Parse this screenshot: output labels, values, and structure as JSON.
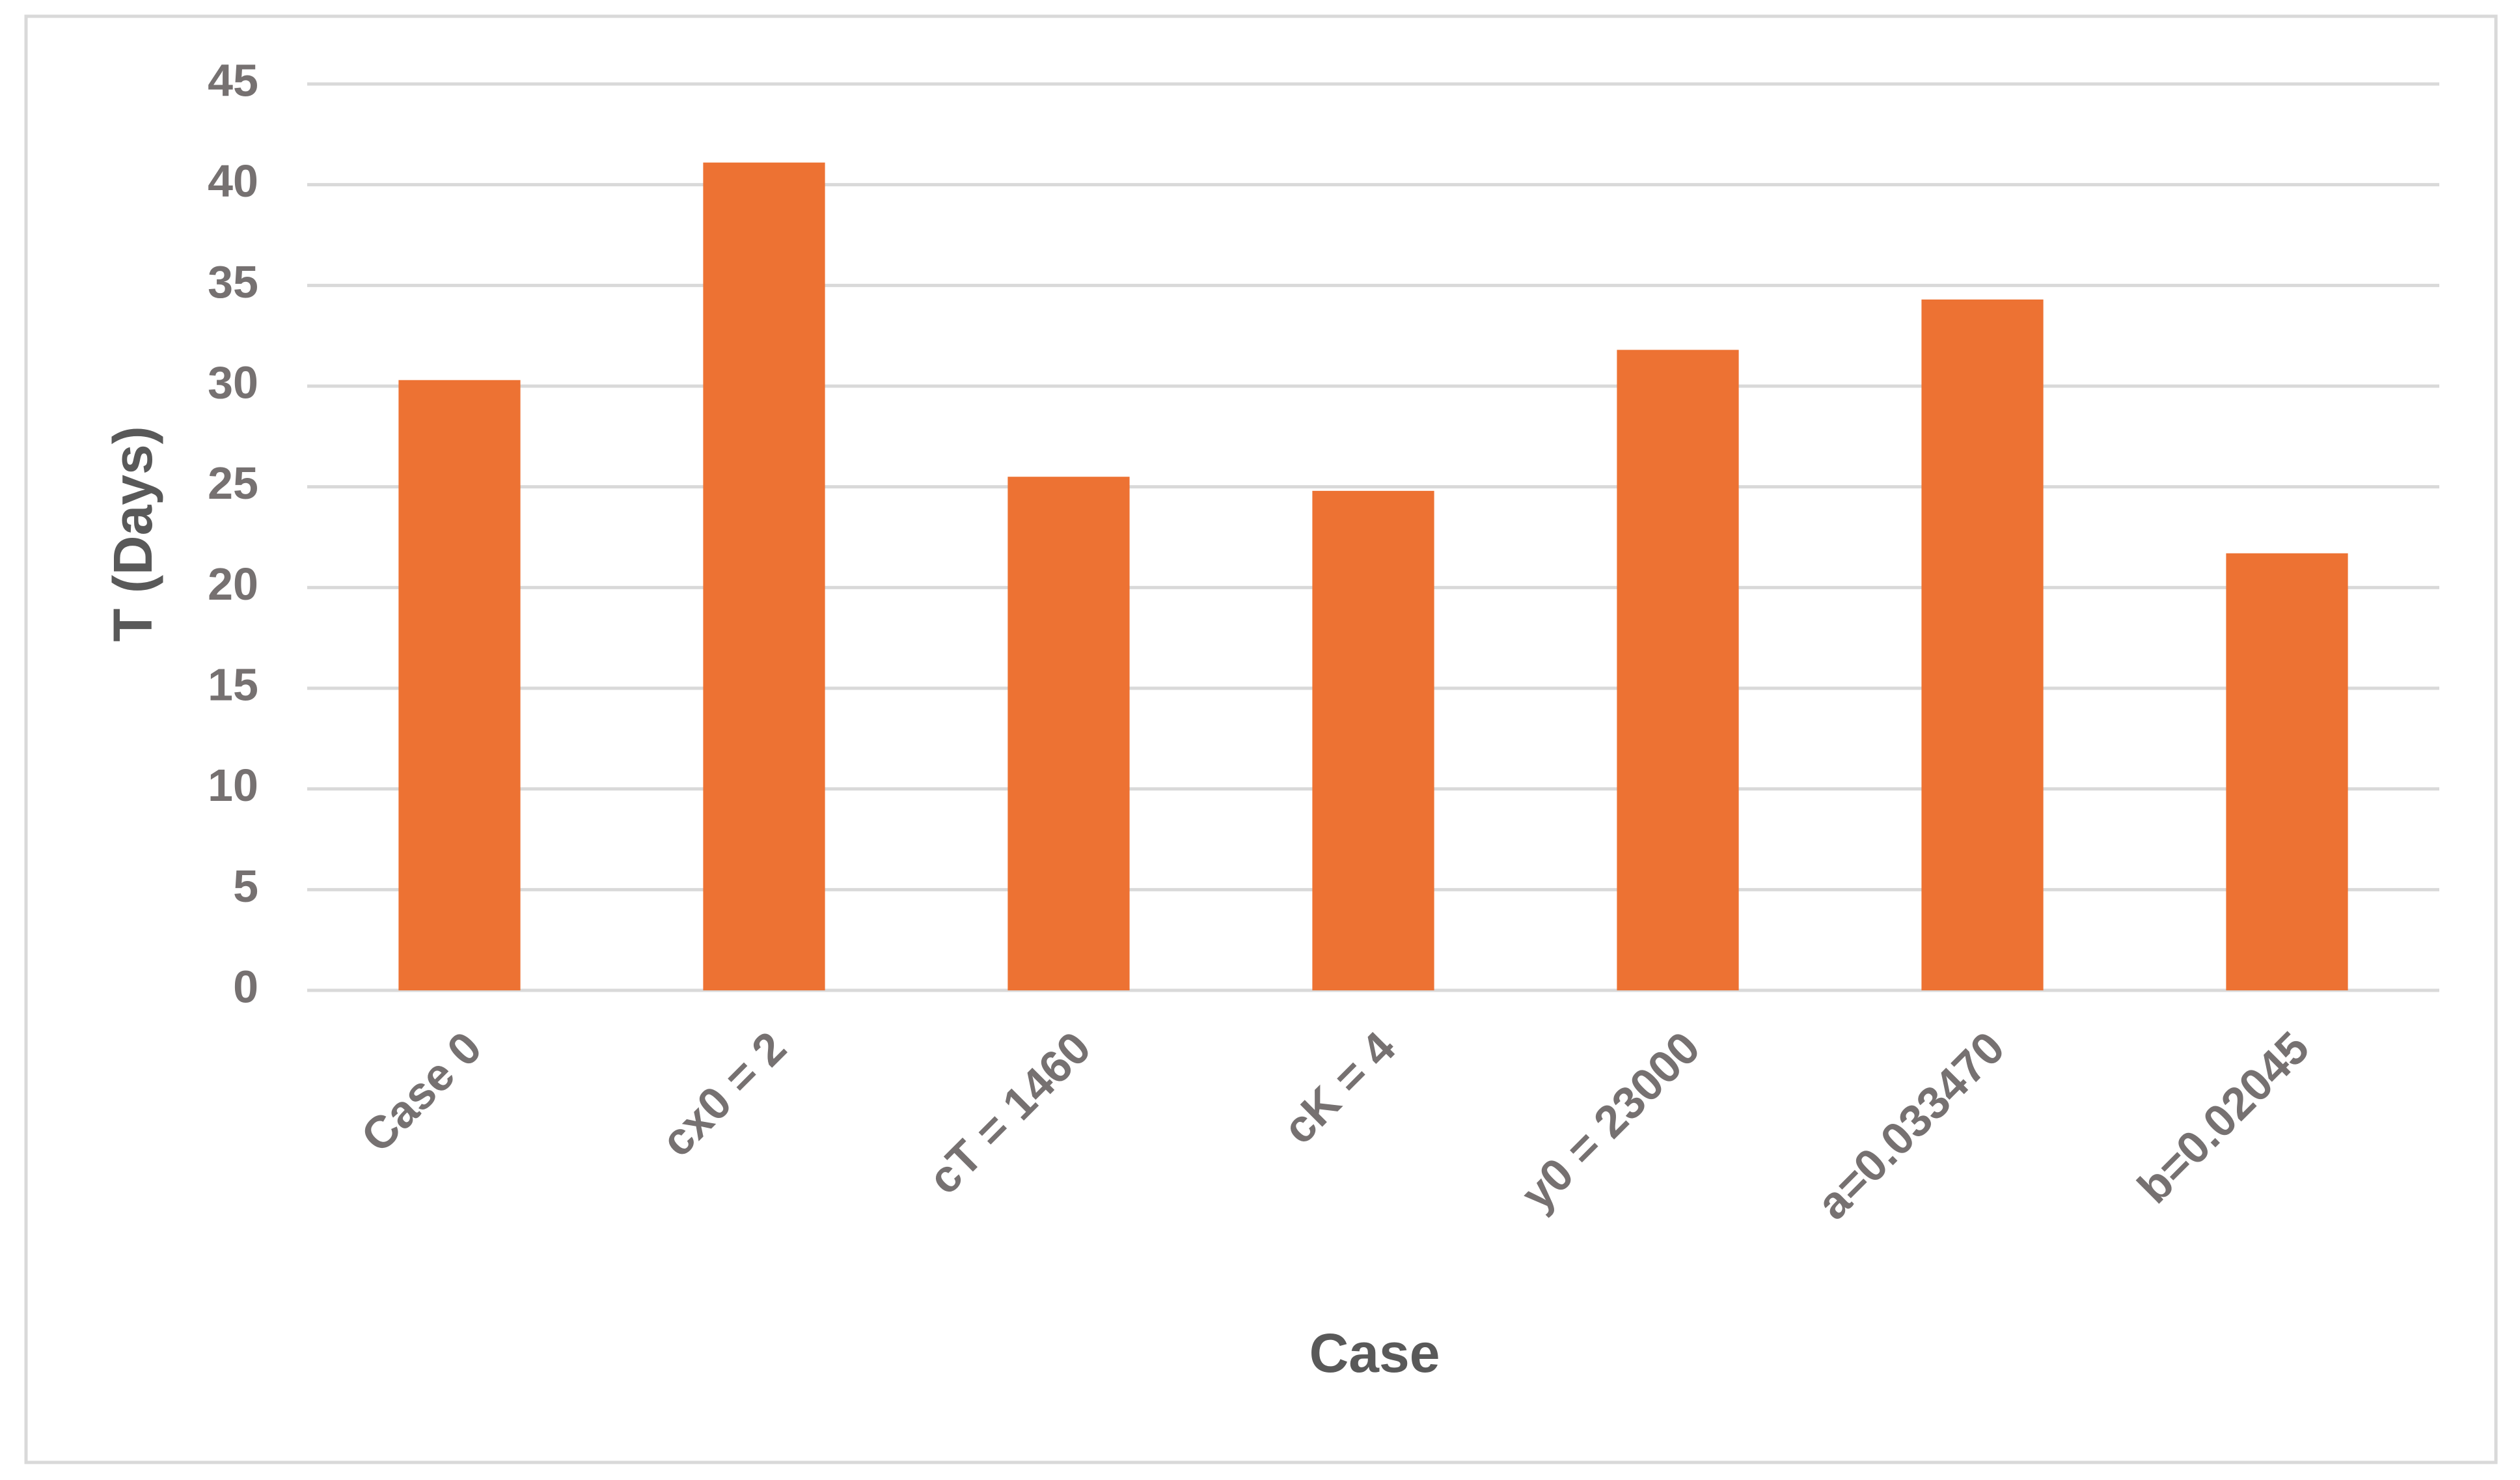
{
  "chart_data": {
    "type": "bar",
    "x_label": "Case",
    "y_label": "T (Days)",
    "categories": [
      "Case 0",
      "cx0 = 2",
      "cT = 1460",
      "cK = 4",
      "y0 = 23000",
      "a=0.033470",
      "b=0.02045"
    ],
    "values": [
      30.3,
      41.1,
      25.5,
      24.8,
      31.8,
      34.3,
      21.7
    ],
    "color": "#ed7233",
    "ylim": [
      0,
      45
    ],
    "yticks": [
      0,
      5,
      10,
      15,
      20,
      25,
      30,
      35,
      40,
      45
    ],
    "grid": true
  }
}
